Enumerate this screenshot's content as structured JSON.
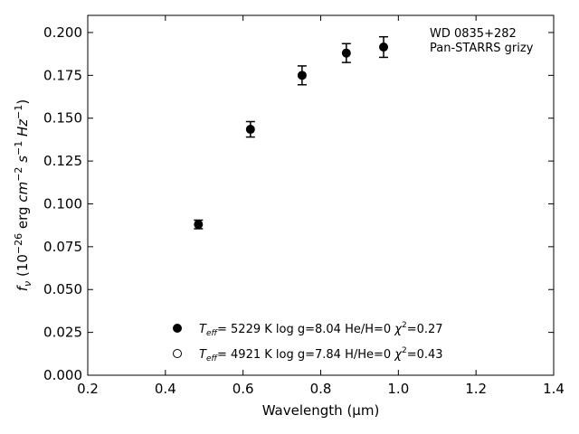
{
  "chart_data": {
    "type": "scatter",
    "xlabel": "Wavelength (μm)",
    "ylabel": "f_ν (10^-26 erg cm^-2 s^-1 Hz^-1)",
    "xlim": [
      0.2,
      1.4
    ],
    "ylim": [
      0.0,
      0.21
    ],
    "x_ticks": [
      0.2,
      0.4,
      0.6,
      0.8,
      1.0,
      1.2,
      1.4
    ],
    "x_tick_labels": [
      "0.2",
      "0.4",
      "0.6",
      "0.8",
      "1.0",
      "1.2",
      "1.4"
    ],
    "y_ticks": [
      0.0,
      0.025,
      0.05,
      0.075,
      0.1,
      0.125,
      0.15,
      0.175,
      0.2
    ],
    "y_tick_labels": [
      "0.000",
      "0.025",
      "0.050",
      "0.075",
      "0.100",
      "0.125",
      "0.150",
      "0.175",
      "0.200"
    ],
    "annotation": [
      "WD 0835+282",
      "Pan-STARRS grizy"
    ],
    "annotation_position": "top-right",
    "grid": false,
    "series": [
      {
        "marker": "filled-circle",
        "x": [
          0.485,
          0.619,
          0.752,
          0.866,
          0.962
        ],
        "y": [
          0.088,
          0.1435,
          0.175,
          0.188,
          0.1915
        ],
        "yerr": [
          0.0025,
          0.0045,
          0.0055,
          0.0055,
          0.006
        ]
      }
    ],
    "legend": {
      "placement": "lower-center",
      "entries": [
        {
          "marker": "filled-circle",
          "teff_prefix": "T",
          "teff_sub": "eff",
          "text": "=  5229 K  log g=8.04  He/H=0  ",
          "chi_sup": "2",
          "chi_value": "=0.27"
        },
        {
          "marker": "open-circle",
          "teff_prefix": "T",
          "teff_sub": "eff",
          "text": "=  4921 K  log g=7.84  H/He=0  ",
          "chi_sup": "2",
          "chi_value": "=0.43"
        }
      ]
    }
  }
}
